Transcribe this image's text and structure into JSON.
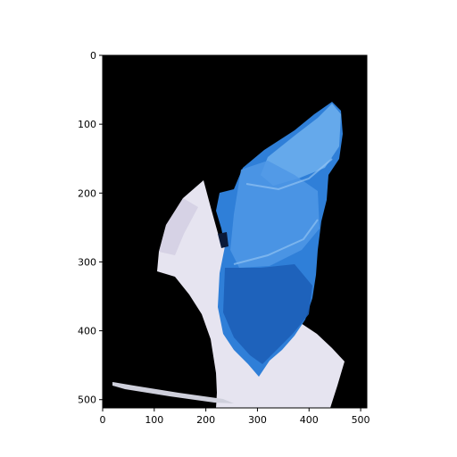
{
  "figure": {
    "x_ticks": [
      0,
      100,
      200,
      300,
      400,
      500
    ],
    "y_ticks": [
      0,
      100,
      200,
      300,
      400,
      500
    ],
    "x_range": [
      0,
      512
    ],
    "y_range": [
      0,
      512
    ],
    "y_inverted": true,
    "colors": {
      "background": "#000000",
      "dish": "#e6e4f0",
      "crystal": "#2f7fd8",
      "crystal_highlight": "#6fb0ee",
      "crystal_shadow": "#1d5fb8",
      "axes": "#000000"
    }
  }
}
